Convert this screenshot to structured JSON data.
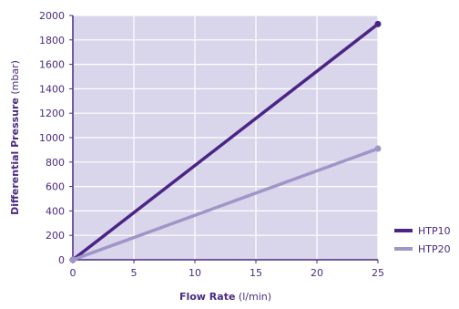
{
  "chart_data": {
    "type": "line",
    "x": [
      0,
      25
    ],
    "series": [
      {
        "name": "HTP10",
        "values": [
          0,
          1930
        ],
        "color": "#4b2586"
      },
      {
        "name": "HTP20",
        "values": [
          0,
          910
        ],
        "color": "#a195c8"
      }
    ],
    "xlabel": {
      "bold": "Flow Rate",
      "unit": " (l/min)"
    },
    "ylabel": {
      "bold": "Differential Pressure",
      "unit": " (mbar)"
    },
    "xlim": [
      0,
      25
    ],
    "ylim": [
      0,
      2000
    ],
    "xticks": [
      0,
      5,
      10,
      15,
      20,
      25
    ],
    "yticks": [
      0,
      200,
      400,
      600,
      800,
      1000,
      1200,
      1400,
      1600,
      1800,
      2000
    ],
    "grid": true,
    "legend_position": "bottom-right",
    "plot_background": "#d9d5ea",
    "grid_color": "#ffffff",
    "axis_color": "#4a2a80"
  }
}
